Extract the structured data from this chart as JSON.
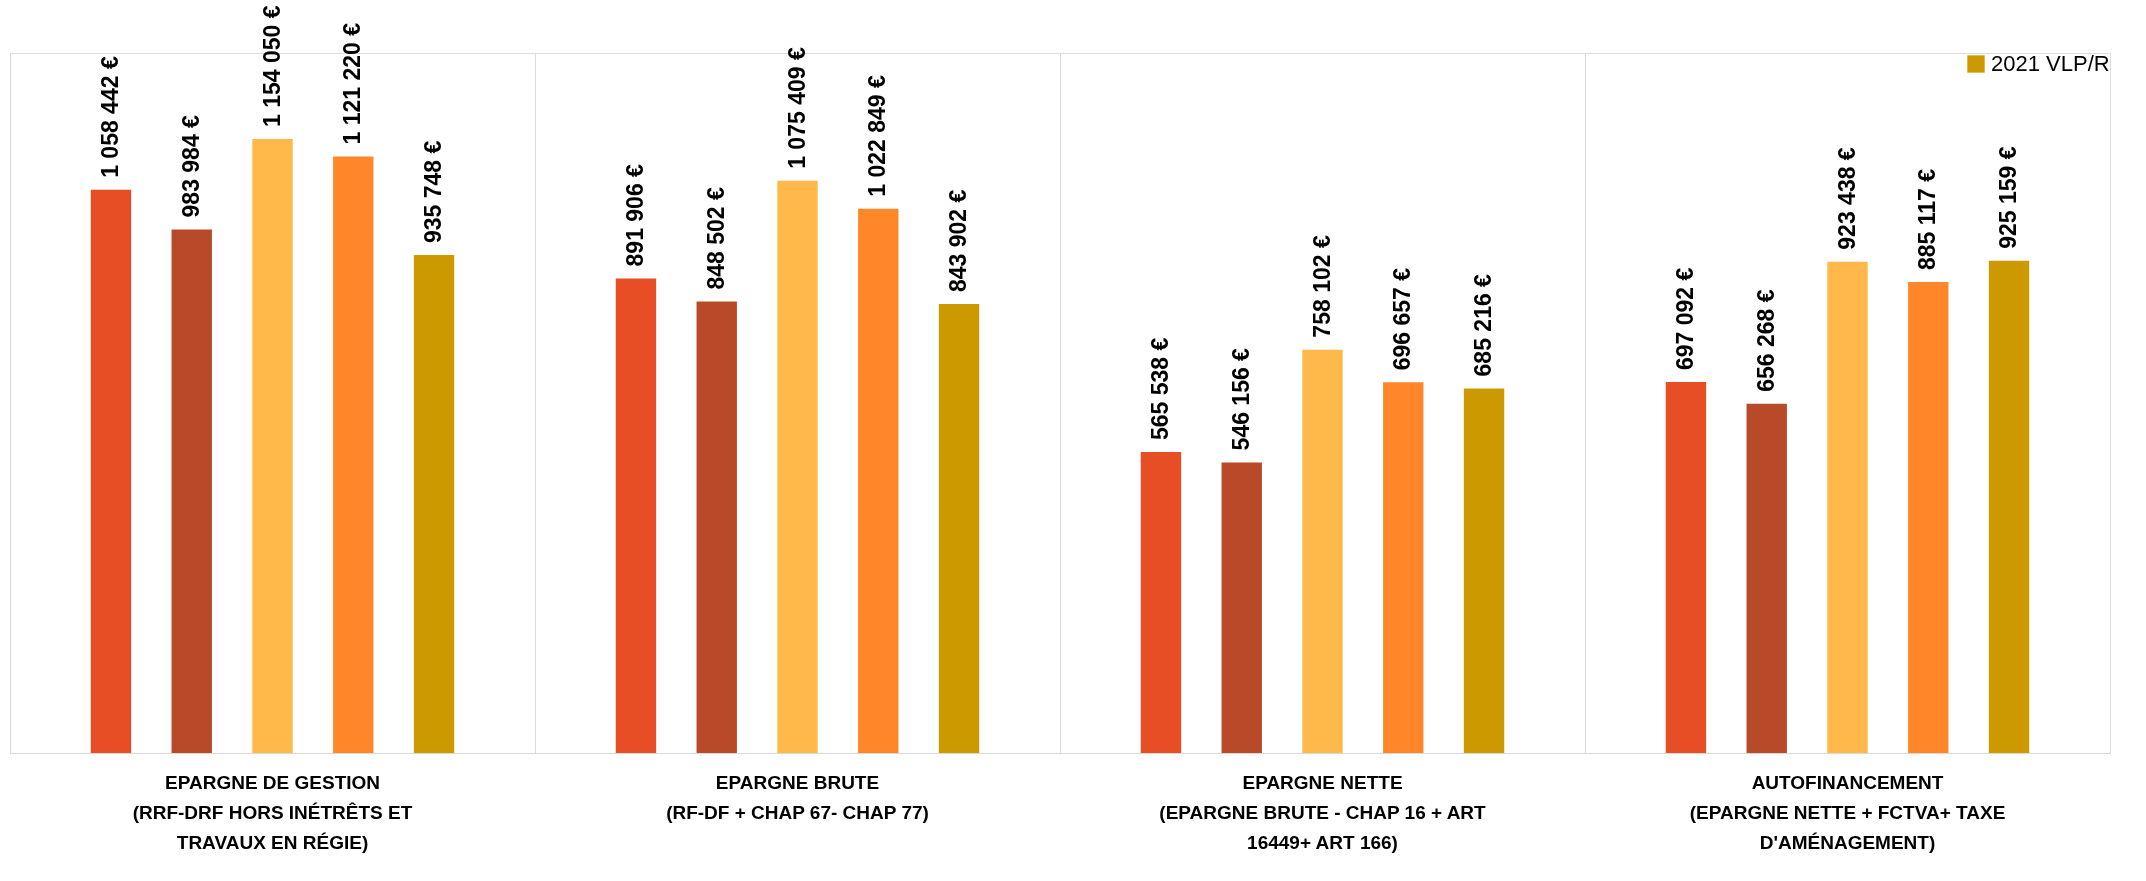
{
  "chart_data": {
    "type": "bar",
    "categories": [
      "EPARGNE DE GESTION\n(RRF-DRF HORS INÉTRÊTS ET\nTRAVAUX EN RÉGIE)",
      "EPARGNE BRUTE\n(RF-DF + CHAP 67- CHAP 77)",
      "EPARGNE NETTE\n(EPARGNE BRUTE - CHAP 16 + ART\n16449+ ART 166)",
      "AUTOFINANCEMENT\n(EPARGNE NETTE + FCTVA+ TAXE\nD'AMÉNAGEMENT)"
    ],
    "series": [
      {
        "color": "#e84e26",
        "values": [
          1058442,
          891906,
          565538,
          697092
        ],
        "value_labels": [
          "1 058 442 €",
          "891 906 €",
          "565 538 €",
          "697 092 €"
        ]
      },
      {
        "color": "#b84a2a",
        "values": [
          983984,
          848502,
          546156,
          656268
        ],
        "value_labels": [
          "983 984 €",
          "848 502 €",
          "546 156 €",
          "656 268 €"
        ]
      },
      {
        "color": "#ffb94a",
        "values": [
          1154050,
          1075409,
          758102,
          923438
        ],
        "value_labels": [
          "1 154 050 €",
          "1 075 409 €",
          "758 102 €",
          "923 438 €"
        ]
      },
      {
        "color": "#ff8629",
        "values": [
          1121220,
          1022849,
          696657,
          885117
        ],
        "value_labels": [
          "1 121 220 €",
          "1 022 849 €",
          "696 657 €",
          "885 117 €"
        ]
      },
      {
        "name": "2021 VLP/R",
        "color": "#cc9a00",
        "values": [
          935748,
          843902,
          685216,
          925159
        ],
        "value_labels": [
          "935 748 €",
          "843 902 €",
          "685 216 €",
          "925 159 €"
        ]
      }
    ],
    "legend": "top right",
    "tick_labels": "x"
  }
}
